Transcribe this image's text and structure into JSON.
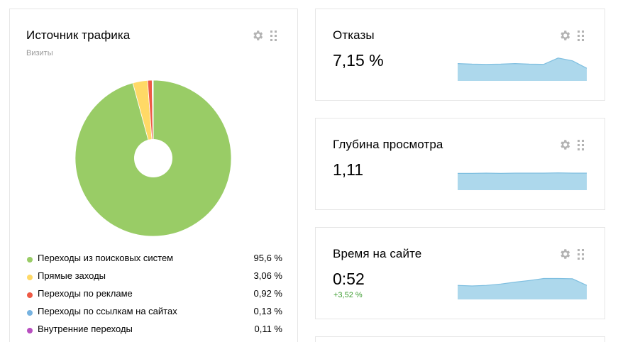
{
  "traffic": {
    "title": "Источник трафика",
    "subtitle": "Визиты",
    "chart_data": {
      "type": "pie",
      "title": "Источник трафика",
      "subtitle": "Визиты",
      "donut": true,
      "slices": [
        {
          "label": "Переходы из поисковых систем",
          "value": 95.6,
          "color": "#99cc66"
        },
        {
          "label": "Прямые заходы",
          "value": 3.06,
          "color": "#ffd966"
        },
        {
          "label": "Переходы по рекламе",
          "value": 0.92,
          "color": "#ee5a45"
        },
        {
          "label": "Переходы по ссылкам на сайтах",
          "value": 0.13,
          "color": "#77b3e0"
        },
        {
          "label": "Внутренние переходы",
          "value": 0.11,
          "color": "#b84fc0"
        }
      ]
    },
    "legend": [
      {
        "label": "Переходы из поисковых систем",
        "value": "95,6 %",
        "color": "#99cc66"
      },
      {
        "label": "Прямые заходы",
        "value": "3,06 %",
        "color": "#ffd966"
      },
      {
        "label": "Переходы по рекламе",
        "value": "0,92 %",
        "color": "#ee5a45"
      },
      {
        "label": "Переходы по ссылкам на сайтах",
        "value": "0,13 %",
        "color": "#77b3e0"
      },
      {
        "label": "Внутренние переходы",
        "value": "0,11 %",
        "color": "#b84fc0"
      }
    ]
  },
  "metrics": [
    {
      "title": "Отказы",
      "value": "7,15 %",
      "delta": "",
      "spark": [
        0.52,
        0.5,
        0.49,
        0.5,
        0.52,
        0.5,
        0.49,
        0.72,
        0.62,
        0.35
      ]
    },
    {
      "title": "Глубина просмотра",
      "value": "1,11",
      "delta": "",
      "spark": [
        0.5,
        0.5,
        0.51,
        0.5,
        0.51,
        0.51,
        0.51,
        0.52,
        0.51,
        0.51
      ]
    },
    {
      "title": "Время на сайте",
      "value": "0:52",
      "delta": "+3,52 %",
      "spark": [
        0.4,
        0.38,
        0.4,
        0.45,
        0.52,
        0.58,
        0.65,
        0.65,
        0.64,
        0.4
      ]
    }
  ],
  "icons": {
    "settings": "gear-icon",
    "drag": "grip-icon",
    "spark_fill": "#add8ec",
    "spark_line": "#7fbfe0"
  }
}
